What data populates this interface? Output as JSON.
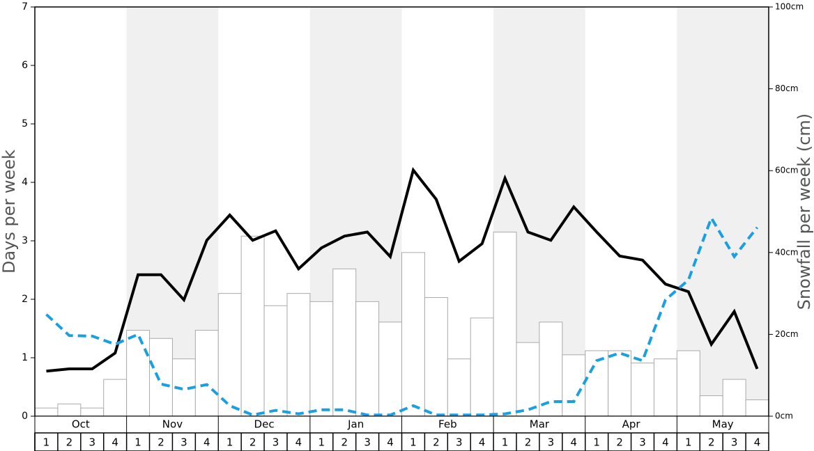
{
  "chart_data": {
    "type": "bar-line",
    "y_label": "Days per week",
    "y2_label": "Snowfall per week (cm)",
    "months": [
      "Oct",
      "Nov",
      "Dec",
      "Jan",
      "Feb",
      "Mar",
      "Apr",
      "May"
    ],
    "shaded_color": "#f0f0f0",
    "categories": [
      "1",
      "2",
      "3",
      "4",
      "1",
      "2",
      "3",
      "4",
      "1",
      "2",
      "3",
      "4",
      "1",
      "2",
      "3",
      "4",
      "1",
      "2",
      "3",
      "4",
      "1",
      "2",
      "3",
      "4",
      "1",
      "2",
      "3",
      "4",
      "1",
      "2",
      "3",
      "4"
    ],
    "ylim": [
      0,
      7
    ],
    "yticks": [
      0,
      1,
      2,
      3,
      4,
      5,
      6,
      7
    ],
    "y2lim": [
      0,
      100
    ],
    "y2ticks": [
      {
        "value": 0,
        "label": "0cm"
      },
      {
        "value": 20,
        "label": "20cm"
      },
      {
        "value": 40,
        "label": "40cm"
      },
      {
        "value": 60,
        "label": "60cm"
      },
      {
        "value": 80,
        "label": "80cm"
      },
      {
        "value": 100,
        "label": "100cm"
      }
    ],
    "series": [
      {
        "type": "bar",
        "axis": "y2",
        "color": "#ffffff",
        "values": [
          2,
          3,
          2,
          9,
          21,
          19,
          14,
          21,
          30,
          44,
          27,
          30,
          28,
          36,
          28,
          23,
          40,
          29,
          14,
          24,
          45,
          18,
          23,
          15,
          16,
          16,
          13,
          14,
          16,
          5,
          9,
          4
        ]
      },
      {
        "type": "line",
        "color": "#000000",
        "values": [
          0.77,
          0.81,
          0.81,
          1.08,
          2.42,
          2.42,
          1.99,
          3.01,
          3.44,
          3.01,
          3.17,
          2.52,
          2.88,
          3.08,
          3.15,
          2.73,
          4.21,
          3.71,
          2.65,
          2.95,
          4.07,
          3.15,
          3.01,
          3.58,
          3.15,
          2.74,
          2.67,
          2.26,
          2.13,
          1.23,
          1.79,
          0.81
        ]
      },
      {
        "type": "dashed",
        "color": "#1a9fe0",
        "values": [
          1.74,
          1.38,
          1.37,
          1.23,
          1.4,
          0.55,
          0.46,
          0.54,
          0.18,
          0.02,
          0.1,
          0.04,
          0.11,
          0.11,
          0.02,
          0.02,
          0.18,
          0.02,
          0.02,
          0.02,
          0.04,
          0.11,
          0.25,
          0.25,
          0.95,
          1.08,
          0.95,
          1.99,
          2.33,
          3.39,
          2.73,
          3.23
        ]
      }
    ]
  }
}
